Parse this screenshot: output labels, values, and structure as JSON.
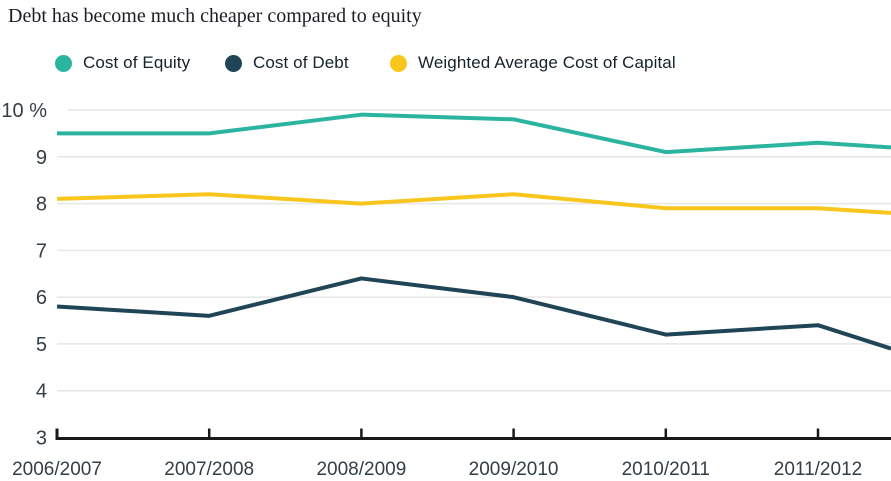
{
  "chart_data": {
    "type": "line",
    "title": "Debt has become much cheaper compared to equity",
    "y_unit": "%",
    "ylim": [
      3,
      10
    ],
    "y_ticks": [
      10,
      9,
      8,
      7,
      6,
      5,
      4,
      3
    ],
    "y_tick_labels": [
      "10 %",
      "9",
      "8",
      "7",
      "6",
      "5",
      "4",
      "3"
    ],
    "categories": [
      "2006/2007",
      "2007/2008",
      "2008/2009",
      "2009/2010",
      "2010/2011",
      "2011/2012"
    ],
    "grid": true,
    "legend_position": "top",
    "series": [
      {
        "name": "Cost of Equity",
        "color": "#2bb5a0",
        "values": [
          9.5,
          9.5,
          9.9,
          9.8,
          9.1,
          9.3
        ],
        "value_at_right_edge": 9.2
      },
      {
        "name": "Cost of Debt",
        "color": "#1f4557",
        "values": [
          5.8,
          5.6,
          6.4,
          6.0,
          5.2,
          5.4
        ],
        "value_at_right_edge": 4.9
      },
      {
        "name": "Weighted Average Cost of Capital",
        "color": "#f8c61c",
        "values": [
          8.1,
          8.2,
          8.0,
          8.2,
          7.9,
          7.9
        ],
        "value_at_right_edge": 7.8
      }
    ],
    "colors": {
      "axis": "#191919",
      "grid": "#e6e6e8",
      "tick_label": "#333e46",
      "title": "#1c1c24",
      "legend_label": "#15232d",
      "background": "#ffffff"
    }
  }
}
